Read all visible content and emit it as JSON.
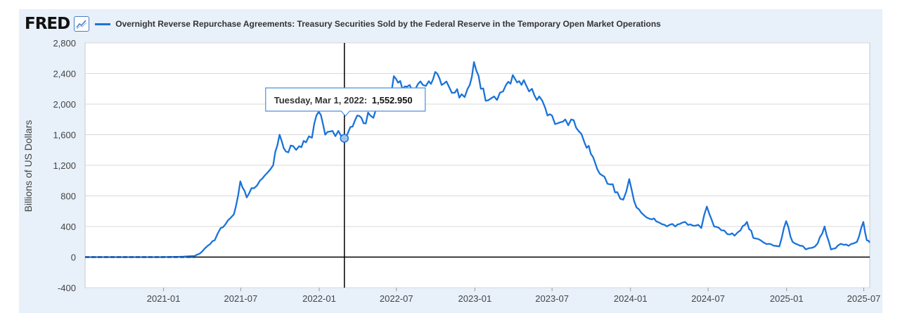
{
  "header": {
    "logo": "FRED",
    "series_title": "Overnight Reverse Repurchase Agreements: Treasury Securities Sold by the Federal Reserve in the Temporary Open Market Operations"
  },
  "colors": {
    "series": "#1a73d9",
    "grid": "#d8d8d8",
    "zero_line": "#000000",
    "panel": "#e8f0f9"
  },
  "tooltip": {
    "date": "Tuesday, Mar 1, 2022:",
    "value": "1,552.950"
  },
  "chart_data": {
    "type": "line",
    "title": "Overnight Reverse Repurchase Agreements: Treasury Securities Sold by the Federal Reserve in the Temporary Open Market Operations",
    "ylabel": "Billions of US Dollars",
    "xlabel": "",
    "ylim": [
      -400,
      2800
    ],
    "xlim": [
      "2020-07-01",
      "2025-07-15"
    ],
    "y_ticks": [
      "2,800",
      "2,400",
      "2,000",
      "1,600",
      "1,200",
      "800",
      "400",
      "0",
      "-400"
    ],
    "x_ticks": [
      "2021-01",
      "2021-07",
      "2022-01",
      "2022-07",
      "2023-01",
      "2023-07",
      "2024-01",
      "2024-07",
      "2025-01",
      "2025-07"
    ],
    "grid": true,
    "legend": "top-left",
    "cursor": {
      "x": "2022-03-01",
      "y": 1552.95
    },
    "series": [
      {
        "name": "Overnight Reverse Repurchase Agreements: Treasury Securities Sold by the Federal Reserve in the Temporary Open Market Operations",
        "points": [
          [
            "2020-07-01",
            0
          ],
          [
            "2020-10-01",
            0
          ],
          [
            "2021-01-01",
            0
          ],
          [
            "2021-02-15",
            5
          ],
          [
            "2021-03-15",
            15
          ],
          [
            "2021-04-01",
            70
          ],
          [
            "2021-04-15",
            150
          ],
          [
            "2021-05-01",
            220
          ],
          [
            "2021-05-15",
            380
          ],
          [
            "2021-06-01",
            480
          ],
          [
            "2021-06-15",
            560
          ],
          [
            "2021-06-30",
            990
          ],
          [
            "2021-07-15",
            780
          ],
          [
            "2021-08-01",
            900
          ],
          [
            "2021-08-15",
            1000
          ],
          [
            "2021-09-01",
            1100
          ],
          [
            "2021-09-15",
            1200
          ],
          [
            "2021-09-30",
            1600
          ],
          [
            "2021-10-15",
            1380
          ],
          [
            "2021-11-01",
            1450
          ],
          [
            "2021-11-15",
            1450
          ],
          [
            "2021-12-01",
            1500
          ],
          [
            "2021-12-15",
            1560
          ],
          [
            "2021-12-31",
            1900
          ],
          [
            "2022-01-15",
            1600
          ],
          [
            "2022-02-01",
            1650
          ],
          [
            "2022-02-15",
            1650
          ],
          [
            "2022-03-01",
            1552.95
          ],
          [
            "2022-03-15",
            1700
          ],
          [
            "2022-03-31",
            1850
          ],
          [
            "2022-04-15",
            1750
          ],
          [
            "2022-05-01",
            1850
          ],
          [
            "2022-05-15",
            1950
          ],
          [
            "2022-06-01",
            2050
          ],
          [
            "2022-06-15",
            2200
          ],
          [
            "2022-06-30",
            2330
          ],
          [
            "2022-07-15",
            2200
          ],
          [
            "2022-08-01",
            2250
          ],
          [
            "2022-08-15",
            2200
          ],
          [
            "2022-09-01",
            2250
          ],
          [
            "2022-09-15",
            2300
          ],
          [
            "2022-09-30",
            2420
          ],
          [
            "2022-10-15",
            2250
          ],
          [
            "2022-11-01",
            2230
          ],
          [
            "2022-11-15",
            2150
          ],
          [
            "2022-12-01",
            2130
          ],
          [
            "2022-12-15",
            2200
          ],
          [
            "2022-12-30",
            2550
          ],
          [
            "2023-01-15",
            2200
          ],
          [
            "2023-02-01",
            2050
          ],
          [
            "2023-02-15",
            2100
          ],
          [
            "2023-03-01",
            2150
          ],
          [
            "2023-03-15",
            2250
          ],
          [
            "2023-03-31",
            2380
          ],
          [
            "2023-04-15",
            2300
          ],
          [
            "2023-05-01",
            2250
          ],
          [
            "2023-05-15",
            2200
          ],
          [
            "2023-06-01",
            2100
          ],
          [
            "2023-06-15",
            1950
          ],
          [
            "2023-07-01",
            1850
          ],
          [
            "2023-07-15",
            1750
          ],
          [
            "2023-08-01",
            1800
          ],
          [
            "2023-08-15",
            1800
          ],
          [
            "2023-09-01",
            1650
          ],
          [
            "2023-09-15",
            1500
          ],
          [
            "2023-09-30",
            1350
          ],
          [
            "2023-10-15",
            1150
          ],
          [
            "2023-11-01",
            1050
          ],
          [
            "2023-11-15",
            950
          ],
          [
            "2023-12-01",
            850
          ],
          [
            "2023-12-15",
            750
          ],
          [
            "2023-12-29",
            1020
          ],
          [
            "2024-01-15",
            650
          ],
          [
            "2024-02-01",
            550
          ],
          [
            "2024-02-15",
            500
          ],
          [
            "2024-03-01",
            470
          ],
          [
            "2024-03-15",
            430
          ],
          [
            "2024-04-01",
            420
          ],
          [
            "2024-04-15",
            400
          ],
          [
            "2024-05-01",
            450
          ],
          [
            "2024-05-15",
            420
          ],
          [
            "2024-06-01",
            410
          ],
          [
            "2024-06-15",
            380
          ],
          [
            "2024-06-28",
            660
          ],
          [
            "2024-07-15",
            400
          ],
          [
            "2024-08-01",
            350
          ],
          [
            "2024-08-15",
            300
          ],
          [
            "2024-09-01",
            280
          ],
          [
            "2024-09-15",
            350
          ],
          [
            "2024-09-30",
            460
          ],
          [
            "2024-10-15",
            250
          ],
          [
            "2024-11-01",
            220
          ],
          [
            "2024-11-15",
            170
          ],
          [
            "2024-12-01",
            150
          ],
          [
            "2024-12-15",
            140
          ],
          [
            "2024-12-31",
            470
          ],
          [
            "2025-01-15",
            200
          ],
          [
            "2025-02-01",
            150
          ],
          [
            "2025-02-15",
            100
          ],
          [
            "2025-03-01",
            120
          ],
          [
            "2025-03-15",
            180
          ],
          [
            "2025-03-31",
            400
          ],
          [
            "2025-04-15",
            100
          ],
          [
            "2025-05-01",
            150
          ],
          [
            "2025-05-15",
            160
          ],
          [
            "2025-06-01",
            170
          ],
          [
            "2025-06-15",
            200
          ],
          [
            "2025-06-30",
            460
          ],
          [
            "2025-07-08",
            220
          ],
          [
            "2025-07-15",
            190
          ]
        ]
      }
    ]
  }
}
